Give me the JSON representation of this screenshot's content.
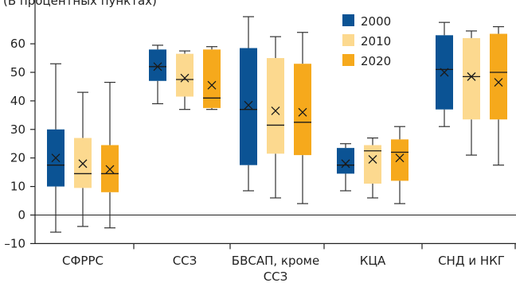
{
  "chart_data": {
    "type": "box",
    "title": "",
    "subtitle": "(В процентных пунктах)",
    "xlabel": "",
    "ylabel": "",
    "ylim": [
      -10,
      70
    ],
    "yticks": [
      -10,
      0,
      10,
      20,
      30,
      40,
      50,
      60
    ],
    "y_tick_labels": [
      "–10",
      "0",
      "10",
      "20",
      "30",
      "40",
      "50",
      "60"
    ],
    "grid": false,
    "legend_position": "top-right",
    "categories": [
      {
        "lines": [
          "СФРРС"
        ]
      },
      {
        "lines": [
          "ССЗ"
        ]
      },
      {
        "lines": [
          "БВСАП, кроме",
          "ССЗ"
        ]
      },
      {
        "lines": [
          "КЦА"
        ]
      },
      {
        "lines": [
          "СНД и НКГ"
        ]
      }
    ],
    "series": [
      {
        "name": "2000",
        "color": "#0b5394",
        "boxes": [
          {
            "min": -6,
            "q1": 10,
            "median": 17.5,
            "mean": 20,
            "q3": 30,
            "max": 53
          },
          {
            "min": 39,
            "q1": 47,
            "median": 52,
            "mean": 52,
            "q3": 58,
            "max": 59.5
          },
          {
            "min": 8.5,
            "q1": 17.5,
            "median": 37,
            "mean": 38.5,
            "q3": 58.5,
            "max": 69.5
          },
          {
            "min": 8.5,
            "q1": 14.5,
            "median": 17.5,
            "mean": 18,
            "q3": 23.5,
            "max": 25
          },
          {
            "min": 31,
            "q1": 37,
            "median": 51,
            "mean": 50,
            "q3": 63,
            "max": 67.5
          }
        ]
      },
      {
        "name": "2010",
        "color": "#fcd98f",
        "boxes": [
          {
            "min": -4,
            "q1": 9.5,
            "median": 14.5,
            "mean": 18,
            "q3": 27,
            "max": 43
          },
          {
            "min": 37,
            "q1": 41.5,
            "median": 47.5,
            "mean": 48,
            "q3": 56.5,
            "max": 57.5
          },
          {
            "min": 6,
            "q1": 21.5,
            "median": 31.5,
            "mean": 36.5,
            "q3": 55,
            "max": 62.5
          },
          {
            "min": 6,
            "q1": 11,
            "median": 22.5,
            "mean": 19.5,
            "q3": 24.5,
            "max": 27
          },
          {
            "min": 21,
            "q1": 33.5,
            "median": 48.5,
            "mean": 48.5,
            "q3": 62,
            "max": 64.5
          }
        ]
      },
      {
        "name": "2020",
        "color": "#f6a91c",
        "boxes": [
          {
            "min": -4.5,
            "q1": 8,
            "median": 14.5,
            "mean": 16,
            "q3": 24.5,
            "max": 46.5
          },
          {
            "min": 37,
            "q1": 37.5,
            "median": 41,
            "mean": 45.5,
            "q3": 58,
            "max": 59
          },
          {
            "min": 4,
            "q1": 21,
            "median": 32.5,
            "mean": 36,
            "q3": 53,
            "max": 64
          },
          {
            "min": 4,
            "q1": 12,
            "median": 22,
            "mean": 20,
            "q3": 26.5,
            "max": 31
          },
          {
            "min": 17.5,
            "q1": 33.5,
            "median": 50,
            "mean": 46.5,
            "q3": 63.5,
            "max": 66
          }
        ]
      }
    ]
  }
}
